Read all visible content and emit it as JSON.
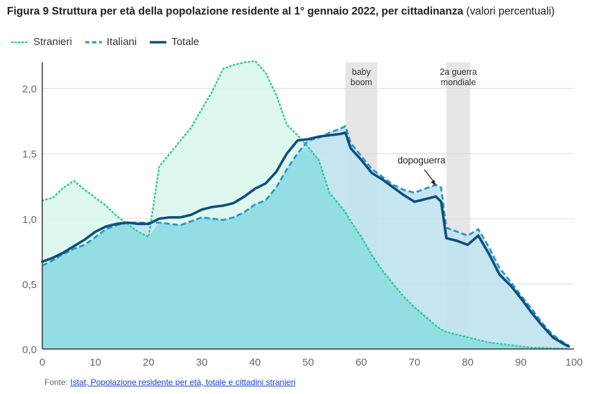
{
  "title": {
    "bold": "Figura 9 Struttura per età della popolazione residente al 1° gennaio 2022, per cittadinanza",
    "normal": "(valori percentuali)"
  },
  "source": {
    "prefix": "Fonte:",
    "link_text": "Istat, Popolazione residente per età, totale e cittadini stranieri"
  },
  "colors": {
    "stranieri": "#2ecc9a",
    "italiani": "#2a95c8",
    "totale": "#0b4f7c",
    "stranieri_fill": "#d9f7ec",
    "italiani_fill": "#bfe2ef",
    "overlap_fill": "#8fdde0",
    "band": "#e6e6e6"
  },
  "chart_data": {
    "type": "area",
    "x": [
      0,
      2,
      4,
      6,
      8,
      10,
      12,
      14,
      16,
      18,
      20,
      22,
      24,
      26,
      28,
      30,
      32,
      34,
      36,
      38,
      40,
      42,
      44,
      46,
      48,
      50,
      52,
      54,
      56,
      57,
      58,
      60,
      62,
      64,
      66,
      68,
      70,
      72,
      74,
      75,
      76,
      78,
      80,
      82,
      84,
      86,
      88,
      90,
      92,
      94,
      96,
      98,
      99
    ],
    "series": [
      {
        "name": "Stranieri",
        "style": "dotted",
        "values": [
          1.14,
          1.16,
          1.24,
          1.29,
          1.22,
          1.16,
          1.1,
          1.02,
          0.96,
          0.9,
          0.86,
          1.4,
          1.5,
          1.6,
          1.7,
          1.84,
          1.98,
          2.15,
          2.18,
          2.2,
          2.21,
          2.12,
          1.95,
          1.72,
          1.64,
          1.55,
          1.45,
          1.2,
          1.1,
          1.05,
          0.98,
          0.86,
          0.72,
          0.6,
          0.5,
          0.4,
          0.32,
          0.25,
          0.18,
          0.15,
          0.13,
          0.11,
          0.09,
          0.07,
          0.05,
          0.04,
          0.03,
          0.02,
          0.01,
          0.01,
          0.005,
          0.003,
          0.002
        ]
      },
      {
        "name": "Italiani",
        "style": "dashed",
        "values": [
          0.64,
          0.68,
          0.73,
          0.77,
          0.8,
          0.86,
          0.92,
          0.95,
          0.97,
          0.97,
          0.97,
          0.97,
          0.96,
          0.95,
          0.98,
          1.01,
          1.0,
          0.99,
          1.01,
          1.05,
          1.11,
          1.14,
          1.24,
          1.38,
          1.5,
          1.6,
          1.62,
          1.66,
          1.69,
          1.71,
          1.58,
          1.48,
          1.38,
          1.32,
          1.26,
          1.22,
          1.2,
          1.23,
          1.26,
          1.24,
          0.93,
          0.9,
          0.87,
          0.92,
          0.78,
          0.62,
          0.52,
          0.41,
          0.31,
          0.2,
          0.11,
          0.05,
          0.03
        ]
      },
      {
        "name": "Totale",
        "style": "solid",
        "values": [
          0.67,
          0.7,
          0.74,
          0.79,
          0.84,
          0.9,
          0.94,
          0.96,
          0.97,
          0.96,
          0.96,
          1.0,
          1.01,
          1.01,
          1.03,
          1.07,
          1.09,
          1.1,
          1.12,
          1.17,
          1.23,
          1.27,
          1.36,
          1.5,
          1.6,
          1.61,
          1.63,
          1.64,
          1.65,
          1.66,
          1.54,
          1.45,
          1.35,
          1.3,
          1.24,
          1.18,
          1.13,
          1.15,
          1.17,
          1.13,
          0.85,
          0.83,
          0.8,
          0.87,
          0.73,
          0.57,
          0.49,
          0.39,
          0.28,
          0.18,
          0.09,
          0.04,
          0.02
        ]
      }
    ],
    "xlim": [
      0,
      100
    ],
    "ylim": [
      0,
      2.2
    ],
    "xticks": [
      0,
      10,
      20,
      30,
      40,
      50,
      60,
      70,
      80,
      90,
      100
    ],
    "xtick_labels": [
      "0",
      "10",
      "20",
      "30",
      "40",
      "50",
      "60",
      "70",
      "80",
      "90",
      "100"
    ],
    "yticks": [
      0,
      0.5,
      1.0,
      1.5,
      2.0
    ],
    "ytick_labels": [
      "0,0",
      "0,5",
      "1,0",
      "1,5",
      "2,0"
    ],
    "grid": "horizontal",
    "legend": "top-left",
    "bands": [
      {
        "from": 57,
        "to": 63,
        "label_lines": [
          "baby",
          "boom"
        ]
      },
      {
        "from": 76,
        "to": 80.5,
        "label_lines": [
          "2a guerra",
          "mondiale"
        ]
      }
    ],
    "annotations": [
      {
        "text": "dopoguerra",
        "x": 74,
        "y": 1.25
      }
    ]
  }
}
